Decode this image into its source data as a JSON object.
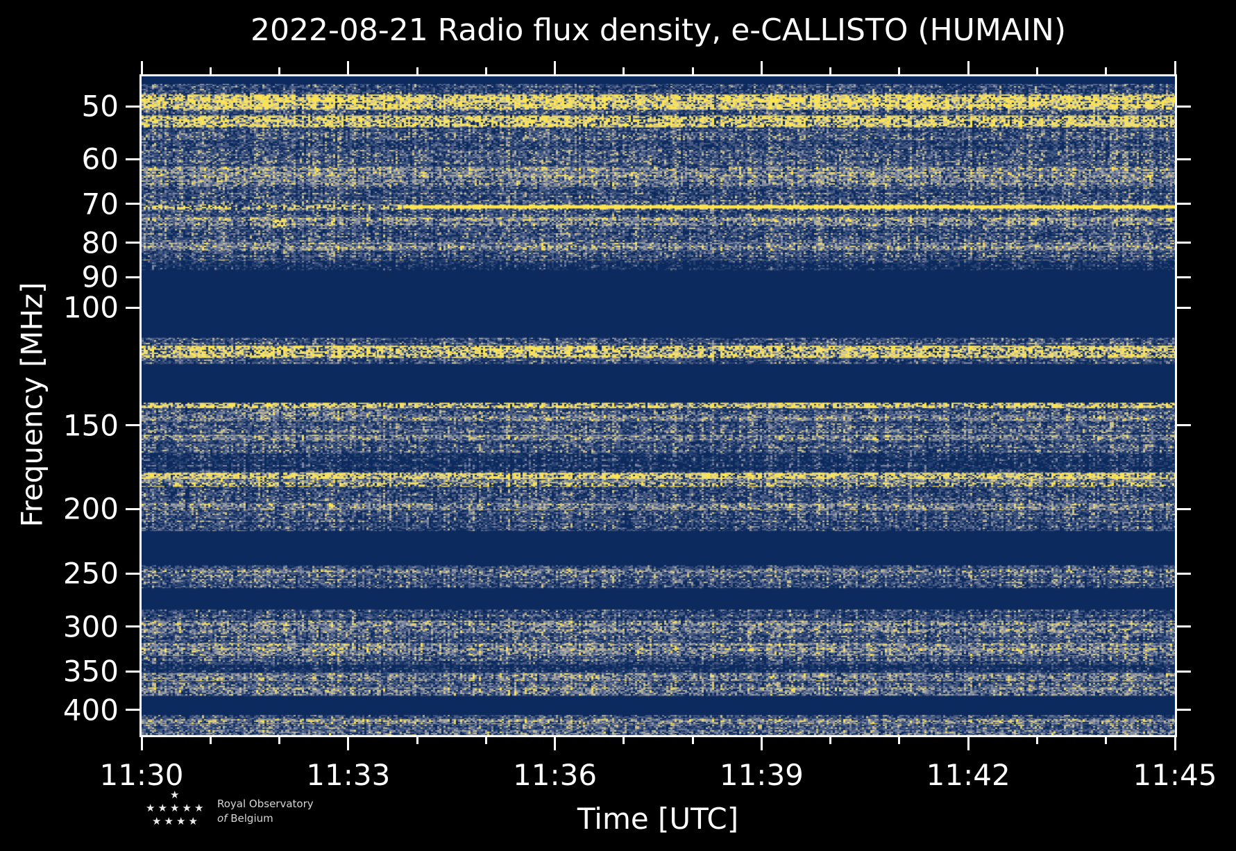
{
  "figure": {
    "title": "2022-08-21 Radio flux density, e-CALLISTO (HUMAIN)",
    "background": "#000000"
  },
  "chart_data": {
    "type": "heatmap",
    "subtype": "radio-spectrogram",
    "title": "2022-08-21 Radio flux density, e-CALLISTO (HUMAIN)",
    "xlabel": "Time [UTC]",
    "ylabel": "Frequency [MHz]",
    "x_range_utc": [
      "11:30",
      "11:45"
    ],
    "x_major_ticks": [
      {
        "minute": 0,
        "label": "11:30"
      },
      {
        "minute": 3,
        "label": "11:33"
      },
      {
        "minute": 6,
        "label": "11:36"
      },
      {
        "minute": 9,
        "label": "11:39"
      },
      {
        "minute": 12,
        "label": "11:42"
      },
      {
        "minute": 15,
        "label": "11:45"
      }
    ],
    "x_minor_tick_every_minutes": 1,
    "y_scale": "log",
    "y_axis_inverted_low_at_top": true,
    "y_range_mhz": [
      45.1,
      436
    ],
    "y_tick_values": [
      50,
      60,
      70,
      80,
      90,
      100,
      150,
      200,
      250,
      300,
      350,
      400
    ],
    "grid": false,
    "legend": "none",
    "colormap_palette": [
      "#0d2a5e",
      "#24406f",
      "#4a5c85",
      "#7d87a0",
      "#a8a99f",
      "#cfc489",
      "#eadd7d",
      "#ffe44d"
    ],
    "background_color": "#0d2a5e",
    "axis_color": "#ffffff",
    "features": [
      "Strong broadband noise 45-88 MHz with bright yellow bands near 48-54 MHz",
      "Narrow bright carrier at ~70.5 MHz, continuous solid line from ~11:34 onward",
      "Bright speckled emission band at ~114-119 MHz",
      "Speckled RFI lines near 140 MHz and 177-185 MHz",
      "Blank (masked) frequency ranges: 88-111, 121-139, 216-243, 263-283, 381-407 MHz",
      "Diffuse weak blue-grey noise from 283 MHz to 436 MHz"
    ],
    "bands": [
      [
        45.1,
        46.3,
        "blank"
      ],
      [
        46.3,
        48.0,
        "medium"
      ],
      [
        48.0,
        50.6,
        "bright"
      ],
      [
        50.6,
        51.6,
        "medium"
      ],
      [
        51.6,
        53.8,
        "bright"
      ],
      [
        53.8,
        61.5,
        "medium"
      ],
      [
        61.5,
        66.0,
        "pale"
      ],
      [
        66.0,
        70.1,
        "medium"
      ],
      [
        70.1,
        71.4,
        "speckle"
      ],
      [
        71.4,
        73.2,
        "medium"
      ],
      [
        73.2,
        75.6,
        "pale"
      ],
      [
        75.6,
        79.8,
        "medium"
      ],
      [
        79.8,
        82.2,
        "pale"
      ],
      [
        82.2,
        85.0,
        "medium"
      ],
      [
        85.0,
        88.0,
        "dim"
      ],
      [
        88.0,
        111.0,
        "blank"
      ],
      [
        111.0,
        114.0,
        "medium"
      ],
      [
        114.0,
        119.0,
        "bright"
      ],
      [
        119.0,
        121.5,
        "medium"
      ],
      [
        121.5,
        138.8,
        "blank"
      ],
      [
        138.8,
        141.5,
        "bright"
      ],
      [
        141.5,
        144.5,
        "medium"
      ],
      [
        144.5,
        148.0,
        "pale"
      ],
      [
        148.0,
        155.0,
        "medium"
      ],
      [
        155.0,
        158.0,
        "pale"
      ],
      [
        158.0,
        165.0,
        "medium"
      ],
      [
        165.0,
        176.5,
        "dim"
      ],
      [
        176.5,
        180.5,
        "bright"
      ],
      [
        180.5,
        182.5,
        "pale"
      ],
      [
        182.5,
        185.5,
        "speckle"
      ],
      [
        185.5,
        196.0,
        "medium"
      ],
      [
        196.0,
        201.0,
        "pale"
      ],
      [
        201.0,
        216.0,
        "medium"
      ],
      [
        216.0,
        243.0,
        "blank"
      ],
      [
        243.0,
        246.0,
        "medium"
      ],
      [
        246.0,
        250.0,
        "pale"
      ],
      [
        250.0,
        263.0,
        "medium"
      ],
      [
        263.0,
        283.0,
        "blank"
      ],
      [
        283.0,
        294.0,
        "medium"
      ],
      [
        294.0,
        307.0,
        "pale"
      ],
      [
        307.0,
        318.0,
        "medium"
      ],
      [
        318.0,
        332.0,
        "pale"
      ],
      [
        332.0,
        342.0,
        "medium"
      ],
      [
        342.0,
        352.0,
        "dim"
      ],
      [
        352.0,
        362.0,
        "pale"
      ],
      [
        362.0,
        370.0,
        "medium"
      ],
      [
        370.0,
        381.0,
        "pale"
      ],
      [
        381.0,
        407.0,
        "blank"
      ],
      [
        407.0,
        412.0,
        "medium"
      ],
      [
        412.0,
        420.0,
        "pale"
      ],
      [
        420.0,
        428.0,
        "medium"
      ],
      [
        428.0,
        436.0,
        "pale"
      ]
    ],
    "blobs": [
      {
        "t_lo": 1.3,
        "t_hi": 3.6,
        "f_lo": 141.5,
        "f_hi": 147.5,
        "style": "pale"
      },
      {
        "t_lo": 1.9,
        "t_hi": 2.1,
        "f_lo": 73.5,
        "f_hi": 76.0,
        "style": "bright"
      },
      {
        "t_lo": 8.7,
        "t_hi": 10.3,
        "f_lo": 138.8,
        "f_hi": 141.5,
        "style": "bright"
      },
      {
        "t_lo": 2.3,
        "t_hi": 3.4,
        "f_lo": 114.0,
        "f_hi": 119.0,
        "style": "bright"
      }
    ],
    "rfi_line": {
      "f_lo": 70.3,
      "f_hi": 71.1,
      "solid_from_minute": 3.8,
      "color": "#ffe44d"
    }
  },
  "logo": {
    "line1": "Royal Observatory",
    "line2_italic": "of",
    "line2_rest": "Belgium",
    "star_rows": [
      1,
      5,
      4
    ]
  }
}
